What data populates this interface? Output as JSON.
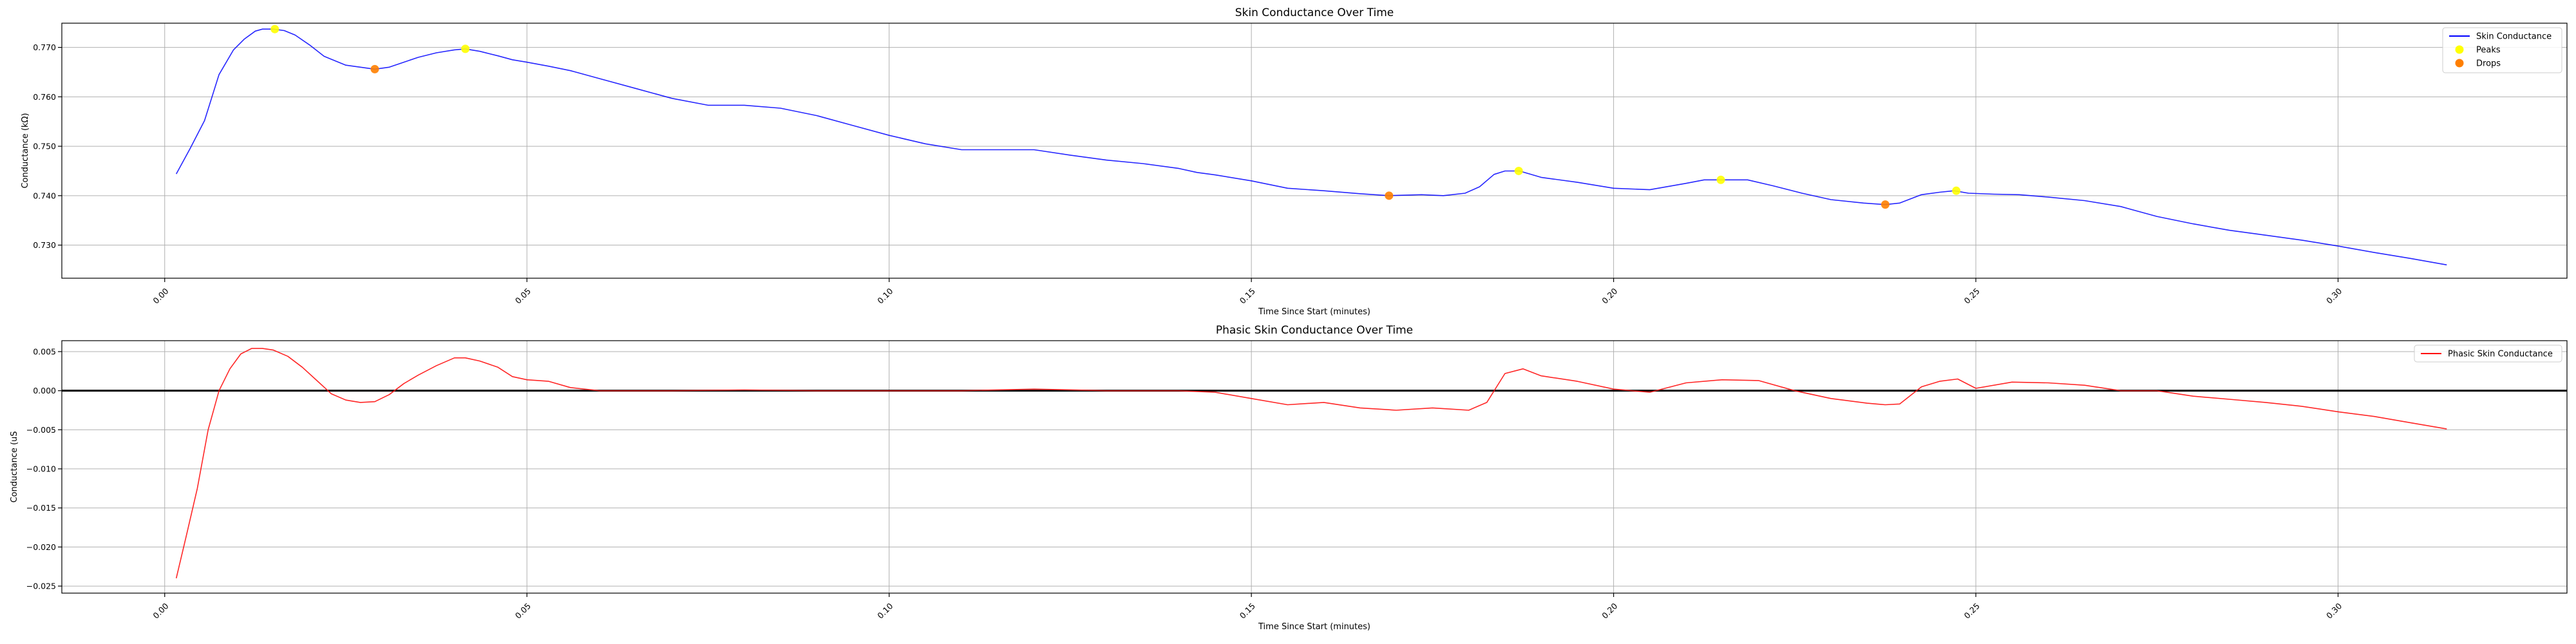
{
  "chart_data": [
    {
      "type": "line",
      "title": "Skin Conductance Over Time",
      "xlabel": "Time Since Start (minutes)",
      "ylabel": "Conductance (kΩ)",
      "xlim": [
        -0.0142,
        0.3316
      ],
      "ylim": [
        0.7233,
        0.7749
      ],
      "xticks": [
        "0.00",
        "0.05",
        "0.10",
        "0.15",
        "0.20",
        "0.25",
        "0.30"
      ],
      "xtick_values": [
        0,
        0.05,
        0.1,
        0.15,
        0.2,
        0.25,
        0.3
      ],
      "yticks": [
        "0.730",
        "0.740",
        "0.750",
        "0.760",
        "0.770"
      ],
      "ytick_values": [
        0.73,
        0.74,
        0.75,
        0.76,
        0.77
      ],
      "grid": true,
      "legend_position": "top-right",
      "legend": [
        "Skin Conductance",
        "Peaks",
        "Drops"
      ],
      "series": [
        {
          "name": "Skin Conductance",
          "kind": "line",
          "color": "#0000ff",
          "x": [
            0.0016,
            0.0035,
            0.0055,
            0.0075,
            0.0095,
            0.011,
            0.0125,
            0.0135,
            0.015,
            0.0165,
            0.018,
            0.02,
            0.022,
            0.025,
            0.027,
            0.029,
            0.031,
            0.033,
            0.035,
            0.0375,
            0.04,
            0.0415,
            0.0435,
            0.046,
            0.048,
            0.05,
            0.053,
            0.056,
            0.06,
            0.065,
            0.07,
            0.075,
            0.08,
            0.085,
            0.09,
            0.095,
            0.1,
            0.105,
            0.11,
            0.115,
            0.12,
            0.125,
            0.13,
            0.135,
            0.14,
            0.1425,
            0.145,
            0.15,
            0.155,
            0.16,
            0.165,
            0.169,
            0.1735,
            0.1765,
            0.1795,
            0.1815,
            0.1835,
            0.185,
            0.187,
            0.19,
            0.195,
            0.2,
            0.205,
            0.21,
            0.2125,
            0.215,
            0.2185,
            0.222,
            0.226,
            0.23,
            0.2345,
            0.2375,
            0.2395,
            0.2425,
            0.245,
            0.247,
            0.249,
            0.2525,
            0.256,
            0.26,
            0.265,
            0.27,
            0.275,
            0.28,
            0.285,
            0.29,
            0.295,
            0.3,
            0.305,
            0.31,
            0.315
          ],
          "y": [
            0.7444,
            0.7495,
            0.7552,
            0.7645,
            0.7695,
            0.7717,
            0.7733,
            0.7737,
            0.7737,
            0.7734,
            0.7725,
            0.7705,
            0.7682,
            0.7664,
            0.766,
            0.7656,
            0.766,
            0.767,
            0.768,
            0.7689,
            0.7695,
            0.7697,
            0.7692,
            0.7683,
            0.7675,
            0.767,
            0.7662,
            0.7653,
            0.7637,
            0.7617,
            0.7597,
            0.7583,
            0.7583,
            0.7577,
            0.7562,
            0.7542,
            0.7522,
            0.7505,
            0.7493,
            0.7493,
            0.7493,
            0.7482,
            0.7472,
            0.7465,
            0.7455,
            0.7447,
            0.7442,
            0.743,
            0.7415,
            0.741,
            0.7404,
            0.74,
            0.7402,
            0.74,
            0.7405,
            0.7418,
            0.7443,
            0.745,
            0.745,
            0.7437,
            0.7427,
            0.7415,
            0.7412,
            0.7425,
            0.7432,
            0.7432,
            0.7432,
            0.742,
            0.7405,
            0.7392,
            0.7385,
            0.7382,
            0.7385,
            0.7402,
            0.7407,
            0.741,
            0.7405,
            0.7403,
            0.7402,
            0.7397,
            0.739,
            0.7378,
            0.7358,
            0.7343,
            0.733,
            0.732,
            0.731,
            0.7298,
            0.7285,
            0.7273,
            0.726
          ]
        },
        {
          "name": "Peaks",
          "kind": "scatter",
          "color": "#ffff00",
          "x": [
            0.0152,
            0.0415,
            0.1869,
            0.2148,
            0.2473
          ],
          "y": [
            0.7737,
            0.7697,
            0.745,
            0.7432,
            0.741
          ]
        },
        {
          "name": "Drops",
          "kind": "scatter",
          "color": "#ff7f00",
          "x": [
            0.029,
            0.169,
            0.2375
          ],
          "y": [
            0.7656,
            0.74,
            0.7382
          ]
        }
      ]
    },
    {
      "type": "line",
      "title": "Phasic Skin Conductance Over Time",
      "xlabel": "Time Since Start (minutes)",
      "ylabel": "Conductance (uS",
      "xlim": [
        -0.0142,
        0.3316
      ],
      "ylim": [
        -0.0259,
        0.0064
      ],
      "xticks": [
        "0.00",
        "0.05",
        "0.10",
        "0.15",
        "0.20",
        "0.25",
        "0.30"
      ],
      "xtick_values": [
        0,
        0.05,
        0.1,
        0.15,
        0.2,
        0.25,
        0.3
      ],
      "yticks": [
        "−0.025",
        "−0.020",
        "−0.015",
        "−0.010",
        "−0.005",
        "0.000",
        "0.005"
      ],
      "ytick_values": [
        -0.025,
        -0.02,
        -0.015,
        -0.01,
        -0.005,
        0,
        0.005
      ],
      "grid": true,
      "zero_line": true,
      "legend_position": "top-right",
      "legend": [
        "Phasic Skin Conductance"
      ],
      "series": [
        {
          "name": "Phasic Skin Conductance",
          "kind": "line",
          "color": "#ff0000",
          "x": [
            0.0016,
            0.003,
            0.0045,
            0.006,
            0.0075,
            0.009,
            0.0105,
            0.012,
            0.0135,
            0.015,
            0.017,
            0.019,
            0.021,
            0.023,
            0.025,
            0.027,
            0.029,
            0.031,
            0.033,
            0.035,
            0.0375,
            0.04,
            0.0415,
            0.0435,
            0.046,
            0.048,
            0.05,
            0.053,
            0.056,
            0.06,
            0.07,
            0.08,
            0.09,
            0.1,
            0.11,
            0.12,
            0.13,
            0.14,
            0.145,
            0.15,
            0.155,
            0.16,
            0.165,
            0.17,
            0.175,
            0.18,
            0.1825,
            0.185,
            0.1875,
            0.19,
            0.195,
            0.2,
            0.205,
            0.21,
            0.215,
            0.22,
            0.225,
            0.23,
            0.235,
            0.2375,
            0.2395,
            0.2425,
            0.245,
            0.2475,
            0.25,
            0.255,
            0.26,
            0.265,
            0.27,
            0.275,
            0.28,
            0.285,
            0.29,
            0.295,
            0.3,
            0.305,
            0.31,
            0.315
          ],
          "y": [
            -0.024,
            -0.0185,
            -0.0125,
            -0.005,
            0.0,
            0.0028,
            0.0047,
            0.0054,
            0.0054,
            0.0052,
            0.0044,
            0.003,
            0.0013,
            -0.0004,
            -0.0012,
            -0.0015,
            -0.0014,
            -0.0005,
            0.0009,
            0.002,
            0.0032,
            0.0042,
            0.0042,
            0.0038,
            0.003,
            0.0018,
            0.0014,
            0.0012,
            0.0004,
            0.0,
            0.0,
            0.0001,
            0.0,
            0.0,
            0.0,
            0.0002,
            0.0,
            0.0,
            -0.0002,
            -0.001,
            -0.0018,
            -0.0015,
            -0.0022,
            -0.0025,
            -0.0022,
            -0.0025,
            -0.0015,
            0.0022,
            0.0028,
            0.0019,
            0.0012,
            0.0002,
            -0.0002,
            0.001,
            0.0014,
            0.0013,
            0.0,
            -0.001,
            -0.0016,
            -0.0018,
            -0.0017,
            0.0005,
            0.0012,
            0.0015,
            0.0003,
            0.0011,
            0.001,
            0.0007,
            0.0,
            0.0,
            -0.0007,
            -0.0011,
            -0.0015,
            -0.002,
            -0.0027,
            -0.0033,
            -0.0041,
            -0.0049
          ]
        }
      ]
    }
  ]
}
